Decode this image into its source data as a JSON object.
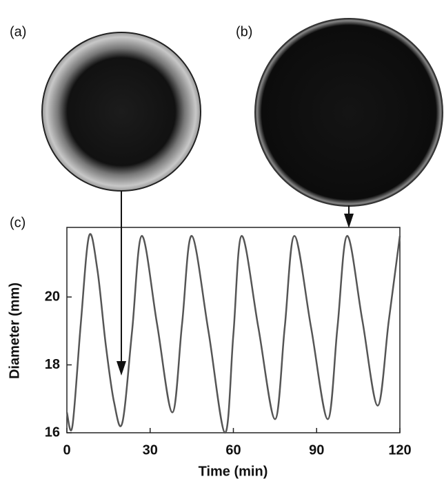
{
  "panel_labels": [
    "(a)",
    "(b)",
    "(c)"
  ],
  "chart_data": {
    "type": "line",
    "x_label": "Time (min)",
    "y_label": "Diameter (mm)",
    "xlim": [
      0,
      120
    ],
    "xticks": [
      0,
      30,
      60,
      90,
      120
    ],
    "ylim": [
      16,
      22.05
    ],
    "yticks": [
      16,
      18,
      20
    ],
    "x": [
      0,
      2,
      5,
      8,
      11,
      14,
      17,
      20,
      23.5,
      27,
      32.5,
      38,
      41.5,
      45,
      51,
      57,
      60,
      63,
      69,
      75,
      78.5,
      82,
      88,
      94,
      97.5,
      101,
      106.5,
      112,
      116,
      120
    ],
    "series": [
      {
        "color": "#555555",
        "values": [
          16.6,
          16.2,
          19.2,
          21.8,
          20.8,
          18.6,
          16.9,
          16.3,
          19.0,
          21.8,
          19.2,
          16.6,
          19.2,
          21.8,
          19.0,
          16.0,
          18.9,
          21.8,
          19.1,
          16.4,
          19.1,
          21.8,
          19.1,
          16.4,
          19.1,
          21.8,
          19.3,
          16.8,
          19.3,
          21.8
        ]
      }
    ]
  }
}
